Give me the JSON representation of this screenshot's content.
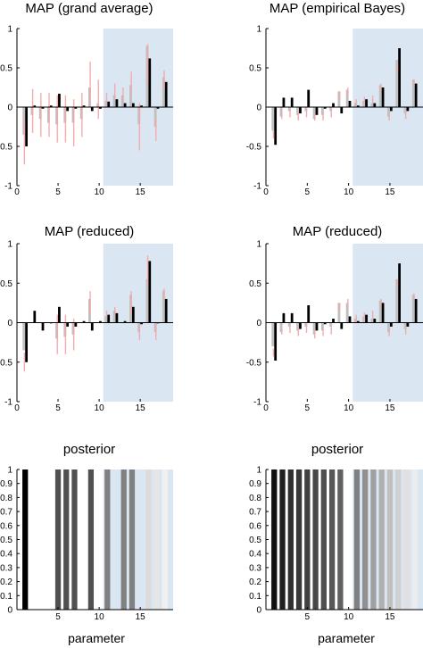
{
  "chart_data": [
    {
      "type": "bar",
      "title": "MAP (grand average)",
      "xlabel": "",
      "ylim": [
        -1,
        1
      ],
      "xticks": [
        0,
        5,
        10,
        15
      ],
      "yticks": [
        -1,
        -0.5,
        0,
        0.5,
        1
      ],
      "highlight_range": [
        10.5,
        19
      ],
      "series": [
        {
          "name": "",
          "color": "#000000",
          "values": [
            -0.5,
            0.02,
            -0.02,
            0.02,
            0.17,
            -0.05,
            -0.02,
            0.02,
            -0.05,
            -0.02,
            0.07,
            0.1,
            0.05,
            0.05,
            0.02,
            0.62,
            -0.02,
            0.32
          ]
        },
        {
          "name": "",
          "color": "#c0c0c0",
          "values": [
            -0.35,
            -0.1,
            -0.15,
            -0.2,
            -0.22,
            -0.2,
            -0.2,
            -0.15,
            0.25,
            0.05,
            0.08,
            0.15,
            0.15,
            0.28,
            -0.22,
            0.78,
            -0.25,
            0.38
          ]
        },
        {
          "name": "",
          "color": "#f4a6a6",
          "values": [
            -0.45,
            -0.05,
            -0.1,
            -0.1,
            -0.15,
            -0.15,
            -0.2,
            -0.1,
            0.3,
            0.1,
            0.1,
            0.2,
            0.15,
            0.3,
            -0.25,
            0.55,
            -0.28,
            0.35
          ],
          "error": [
            0.28,
            0.28,
            0.28,
            0.28,
            0.3,
            0.3,
            0.3,
            0.28,
            0.28,
            0.25,
            0.08,
            0.1,
            0.1,
            0.15,
            0.3,
            0.25,
            0.15,
            0.12
          ]
        }
      ]
    },
    {
      "type": "bar",
      "title": "MAP (empirical Bayes)",
      "xlabel": "",
      "ylim": [
        -1,
        1
      ],
      "xticks": [
        0,
        5,
        10,
        15
      ],
      "yticks": [
        -1,
        -0.5,
        0,
        0.5,
        1
      ],
      "highlight_range": [
        10.5,
        19
      ],
      "series": [
        {
          "name": "",
          "color": "#000000",
          "values": [
            -0.48,
            0.12,
            0.12,
            -0.08,
            0.22,
            -0.1,
            -0.02,
            0.05,
            -0.08,
            0.08,
            0.02,
            0.1,
            0.05,
            0.25,
            -0.05,
            0.75,
            -0.05,
            0.3
          ]
        },
        {
          "name": "",
          "color": "#c0c0c0",
          "values": [
            -0.3,
            -0.12,
            -0.05,
            -0.1,
            -0.05,
            -0.15,
            -0.1,
            -0.05,
            0.2,
            0.22,
            0.05,
            0.08,
            0.05,
            0.28,
            -0.12,
            0.6,
            -0.08,
            0.35
          ]
        },
        {
          "name": "",
          "color": "#f4a6a6",
          "values": [
            -0.35,
            -0.1,
            -0.08,
            -0.12,
            -0.08,
            -0.12,
            -0.12,
            -0.08,
            0.15,
            0.2,
            0.05,
            0.08,
            0.1,
            0.25,
            -0.12,
            0.5,
            -0.1,
            0.3
          ],
          "error": [
            0.05,
            0.05,
            0.05,
            0.05,
            0.05,
            0.05,
            0.05,
            0.05,
            0.05,
            0.05,
            0.05,
            0.05,
            0.05,
            0.05,
            0.05,
            0.05,
            0.05,
            0.05
          ]
        }
      ]
    },
    {
      "type": "bar",
      "title": "MAP (reduced)",
      "xlabel": "",
      "ylim": [
        -1,
        1
      ],
      "xticks": [
        0,
        5,
        10,
        15
      ],
      "yticks": [
        -1,
        -0.5,
        0,
        0.5,
        1
      ],
      "highlight_range": [
        10.5,
        19
      ],
      "series": [
        {
          "name": "",
          "color": "#000000",
          "values": [
            -0.5,
            0.15,
            -0.1,
            0.0,
            0.2,
            -0.05,
            -0.05,
            0.02,
            -0.1,
            0.02,
            0.1,
            0.12,
            0.02,
            0.2,
            -0.02,
            0.78,
            0.0,
            0.3
          ]
        },
        {
          "name": "",
          "color": "#c0c0c0",
          "values": [
            -0.35,
            0.0,
            0.0,
            0.0,
            -0.2,
            -0.18,
            -0.15,
            0.0,
            0.3,
            0.0,
            0.08,
            0.15,
            0.0,
            0.35,
            -0.12,
            0.55,
            -0.12,
            0.4
          ]
        },
        {
          "name": "",
          "color": "#f4a6a6",
          "values": [
            -0.5,
            0.0,
            0.0,
            0.0,
            -0.15,
            -0.15,
            -0.15,
            0.0,
            0.25,
            0.0,
            0.1,
            0.15,
            0.0,
            0.25,
            -0.12,
            0.65,
            -0.12,
            0.35
          ],
          "error": [
            0.12,
            0.0,
            0.0,
            0.0,
            0.25,
            0.25,
            0.2,
            0.0,
            0.15,
            0.0,
            0.05,
            0.05,
            0.0,
            0.15,
            0.1,
            0.2,
            0.1,
            0.08
          ]
        }
      ]
    },
    {
      "type": "bar",
      "title": "MAP (reduced)",
      "xlabel": "",
      "ylim": [
        -1,
        1
      ],
      "xticks": [
        0,
        5,
        10,
        15
      ],
      "yticks": [
        -1,
        -0.5,
        0,
        0.5,
        1
      ],
      "highlight_range": [
        10.5,
        19
      ],
      "series": [
        {
          "name": "",
          "color": "#000000",
          "values": [
            -0.48,
            0.12,
            0.12,
            -0.08,
            0.22,
            -0.1,
            -0.02,
            0.05,
            -0.08,
            0.08,
            0.02,
            0.1,
            0.05,
            0.25,
            -0.05,
            0.75,
            -0.05,
            0.3
          ]
        },
        {
          "name": "",
          "color": "#c0c0c0",
          "values": [
            -0.3,
            -0.12,
            -0.05,
            -0.1,
            -0.05,
            -0.15,
            -0.1,
            -0.05,
            0.25,
            0.25,
            0.05,
            0.08,
            0.05,
            0.28,
            -0.12,
            0.55,
            -0.08,
            0.35
          ]
        },
        {
          "name": "",
          "color": "#f4a6a6",
          "values": [
            -0.38,
            -0.1,
            -0.08,
            -0.12,
            -0.08,
            -0.15,
            -0.12,
            -0.1,
            0.2,
            0.25,
            0.05,
            0.08,
            0.1,
            0.25,
            -0.12,
            0.5,
            -0.1,
            0.32
          ],
          "error": [
            0.05,
            0.05,
            0.05,
            0.05,
            0.05,
            0.05,
            0.05,
            0.05,
            0.05,
            0.05,
            0.05,
            0.05,
            0.05,
            0.05,
            0.05,
            0.05,
            0.05,
            0.05
          ]
        }
      ]
    },
    {
      "type": "bar",
      "title": "posterior",
      "xlabel": "parameter",
      "ylim": [
        0,
        1
      ],
      "xticks": [
        5,
        10,
        15
      ],
      "yticks": [
        0,
        0.1,
        0.2,
        0.3,
        0.4,
        0.5,
        0.6,
        0.7,
        0.8,
        0.9,
        1
      ],
      "highlight_range": [
        10.5,
        19
      ],
      "categories": [
        1,
        2,
        3,
        4,
        5,
        6,
        7,
        8,
        9,
        10,
        11,
        12,
        13,
        14,
        15,
        16,
        17,
        18
      ],
      "values": [
        1,
        0,
        0,
        0,
        1,
        1,
        1,
        0,
        1,
        0,
        1,
        0,
        1,
        1,
        0,
        1,
        1,
        1
      ],
      "colors": [
        "#000000",
        "#ffffff",
        "#ffffff",
        "#ffffff",
        "#505050",
        "#505050",
        "#505050",
        "#ffffff",
        "#505050",
        "#ffffff",
        "#808080",
        "#ffffff",
        "#808080",
        "#808080",
        "#ffffff",
        "#dcdcdc",
        "#e6e6e6",
        "#f0f0f0"
      ]
    },
    {
      "type": "bar",
      "title": "posterior",
      "xlabel": "parameter",
      "ylim": [
        0,
        1
      ],
      "xticks": [
        5,
        10,
        15
      ],
      "yticks": [
        0,
        0.1,
        0.2,
        0.3,
        0.4,
        0.5,
        0.6,
        0.7,
        0.8,
        0.9,
        1
      ],
      "highlight_range": [
        10.5,
        19
      ],
      "categories": [
        1,
        2,
        3,
        4,
        5,
        6,
        7,
        8,
        9,
        10,
        11,
        12,
        13,
        14,
        15,
        16,
        17,
        18
      ],
      "values": [
        1,
        1,
        1,
        1,
        1,
        1,
        1,
        1,
        1,
        1,
        1,
        1,
        1,
        1,
        1,
        1,
        1,
        1
      ],
      "colors": [
        "#101010",
        "#202020",
        "#303030",
        "#383838",
        "#404040",
        "#484848",
        "#505050",
        "#585858",
        "#606060",
        "#ffffff",
        "#808080",
        "#909090",
        "#a0a0a0",
        "#b0b0b0",
        "#c0c0c0",
        "#d0d0d0",
        "#e0e0e0",
        "#ececec"
      ]
    }
  ]
}
